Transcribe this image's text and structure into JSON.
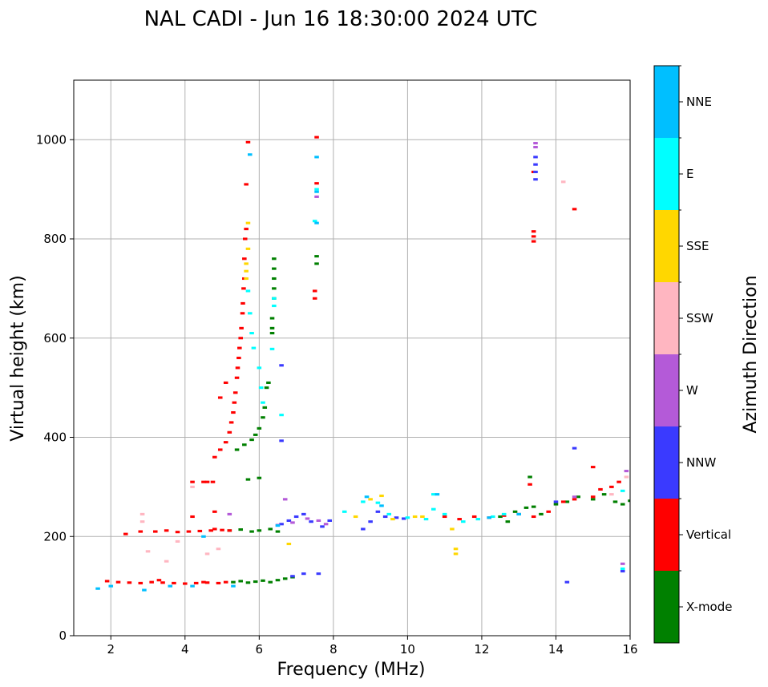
{
  "chart_data": {
    "type": "scatter",
    "title": "NAL CADI - Jun 16 18:30:00 2024 UTC",
    "xlabel": "Frequency (MHz)",
    "ylabel": "Virtual height (km)",
    "xlim": [
      1,
      16
    ],
    "ylim": [
      0,
      1120
    ],
    "xticks": [
      2,
      4,
      6,
      8,
      10,
      12,
      14,
      16
    ],
    "yticks": [
      0,
      200,
      400,
      600,
      800,
      1000
    ],
    "grid": true,
    "colorbar": {
      "label": "Azimuth Direction",
      "categories": [
        {
          "name": "X-mode",
          "color": "#008000"
        },
        {
          "name": "Vertical",
          "color": "#ff0000"
        },
        {
          "name": "NNW",
          "color": "#3a3aff"
        },
        {
          "name": "W",
          "color": "#b45ad8"
        },
        {
          "name": "SSW",
          "color": "#ffb6c1"
        },
        {
          "name": "SSE",
          "color": "#ffd700"
        },
        {
          "name": "E",
          "color": "#00ffff"
        },
        {
          "name": "NNE",
          "color": "#00bfff"
        }
      ]
    },
    "series": [
      {
        "name": "X-mode",
        "points": [
          [
            5.3,
            108
          ],
          [
            5.5,
            110
          ],
          [
            5.7,
            107
          ],
          [
            5.9,
            109
          ],
          [
            6.1,
            111
          ],
          [
            6.3,
            108
          ],
          [
            6.5,
            112
          ],
          [
            6.7,
            115
          ],
          [
            6.9,
            118
          ],
          [
            5.2,
            212
          ],
          [
            5.5,
            214
          ],
          [
            5.8,
            210
          ],
          [
            6.0,
            212
          ],
          [
            6.3,
            215
          ],
          [
            6.5,
            210
          ],
          [
            5.4,
            375
          ],
          [
            5.6,
            385
          ],
          [
            5.8,
            395
          ],
          [
            5.9,
            405
          ],
          [
            6.0,
            418
          ],
          [
            6.1,
            440
          ],
          [
            6.15,
            460
          ],
          [
            6.2,
            500
          ],
          [
            6.25,
            510
          ],
          [
            6.35,
            610
          ],
          [
            6.35,
            620
          ],
          [
            6.35,
            640
          ],
          [
            6.4,
            680
          ],
          [
            6.4,
            700
          ],
          [
            6.4,
            720
          ],
          [
            6.4,
            740
          ],
          [
            6.4,
            760
          ],
          [
            7.55,
            750
          ],
          [
            7.55,
            765
          ],
          [
            5.7,
            315
          ],
          [
            6.0,
            318
          ],
          [
            12.5,
            240
          ],
          [
            12.7,
            230
          ],
          [
            12.9,
            250
          ],
          [
            13.2,
            258
          ],
          [
            13.4,
            260
          ],
          [
            13.6,
            245
          ],
          [
            14.0,
            265
          ],
          [
            14.3,
            270
          ],
          [
            14.6,
            280
          ],
          [
            15.0,
            275
          ],
          [
            15.3,
            285
          ],
          [
            15.6,
            270
          ],
          [
            15.8,
            265
          ],
          [
            16.0,
            272
          ],
          [
            13.3,
            320
          ]
        ]
      },
      {
        "name": "Vertical",
        "points": [
          [
            1.9,
            110
          ],
          [
            2.2,
            108
          ],
          [
            2.5,
            107
          ],
          [
            2.8,
            106
          ],
          [
            3.1,
            108
          ],
          [
            3.4,
            107
          ],
          [
            3.7,
            106
          ],
          [
            4.0,
            105
          ],
          [
            4.3,
            106
          ],
          [
            4.6,
            107
          ],
          [
            4.9,
            106
          ],
          [
            5.1,
            108
          ],
          [
            3.3,
            112
          ],
          [
            4.5,
            108
          ],
          [
            2.4,
            205
          ],
          [
            2.8,
            210
          ],
          [
            3.2,
            210
          ],
          [
            3.5,
            212
          ],
          [
            3.8,
            209
          ],
          [
            4.1,
            210
          ],
          [
            4.4,
            211
          ],
          [
            4.7,
            212
          ],
          [
            5.0,
            213
          ],
          [
            5.2,
            212
          ],
          [
            4.8,
            215
          ],
          [
            4.2,
            310
          ],
          [
            4.5,
            310
          ],
          [
            4.75,
            310
          ],
          [
            4.8,
            360
          ],
          [
            4.95,
            375
          ],
          [
            5.1,
            390
          ],
          [
            5.2,
            410
          ],
          [
            5.25,
            430
          ],
          [
            5.3,
            450
          ],
          [
            5.33,
            470
          ],
          [
            5.36,
            490
          ],
          [
            5.4,
            520
          ],
          [
            5.42,
            540
          ],
          [
            5.45,
            560
          ],
          [
            5.47,
            580
          ],
          [
            5.5,
            600
          ],
          [
            5.52,
            620
          ],
          [
            5.55,
            650
          ],
          [
            5.56,
            670
          ],
          [
            5.58,
            700
          ],
          [
            5.6,
            720
          ],
          [
            5.6,
            760
          ],
          [
            5.62,
            800
          ],
          [
            5.65,
            820
          ],
          [
            5.65,
            910
          ],
          [
            5.7,
            995
          ],
          [
            4.95,
            480
          ],
          [
            5.1,
            510
          ],
          [
            4.2,
            240
          ],
          [
            4.8,
            250
          ],
          [
            4.6,
            310
          ],
          [
            7.5,
            680
          ],
          [
            7.5,
            695
          ],
          [
            7.55,
            1005
          ],
          [
            7.55,
            912
          ],
          [
            11.0,
            240
          ],
          [
            11.4,
            235
          ],
          [
            11.8,
            240
          ],
          [
            12.2,
            238
          ],
          [
            12.6,
            242
          ],
          [
            13.0,
            245
          ],
          [
            13.4,
            240
          ],
          [
            13.8,
            250
          ],
          [
            14.2,
            270
          ],
          [
            14.5,
            275
          ],
          [
            15.0,
            280
          ],
          [
            15.2,
            295
          ],
          [
            15.5,
            300
          ],
          [
            15.7,
            310
          ],
          [
            13.3,
            305
          ],
          [
            15.0,
            340
          ],
          [
            13.4,
            795
          ],
          [
            13.4,
            805
          ],
          [
            13.4,
            815
          ],
          [
            14.5,
            860
          ],
          [
            13.4,
            935
          ]
        ]
      },
      {
        "name": "NNW",
        "points": [
          [
            6.6,
            225
          ],
          [
            6.8,
            232
          ],
          [
            7.0,
            240
          ],
          [
            7.2,
            245
          ],
          [
            7.4,
            230
          ],
          [
            7.7,
            220
          ],
          [
            7.9,
            232
          ],
          [
            8.8,
            215
          ],
          [
            9.0,
            230
          ],
          [
            9.2,
            250
          ],
          [
            9.4,
            240
          ],
          [
            9.7,
            238
          ],
          [
            9.9,
            236
          ],
          [
            6.9,
            120
          ],
          [
            7.2,
            125
          ],
          [
            7.6,
            125
          ],
          [
            6.6,
            545
          ],
          [
            6.6,
            393
          ],
          [
            13.45,
            920
          ],
          [
            13.45,
            935
          ],
          [
            13.45,
            950
          ],
          [
            13.45,
            965
          ],
          [
            14.5,
            378
          ],
          [
            14.3,
            108
          ],
          [
            15.8,
            130
          ],
          [
            14.0,
            270
          ]
        ]
      },
      {
        "name": "W",
        "points": [
          [
            13.45,
            985
          ],
          [
            13.45,
            993
          ],
          [
            6.5,
            223
          ],
          [
            6.9,
            228
          ],
          [
            7.3,
            236
          ],
          [
            7.6,
            232
          ],
          [
            7.8,
            225
          ],
          [
            5.2,
            245
          ],
          [
            6.7,
            275
          ],
          [
            14.5,
            280
          ],
          [
            15.8,
            145
          ],
          [
            15.9,
            332
          ],
          [
            7.55,
            885
          ]
        ]
      },
      {
        "name": "SSW",
        "points": [
          [
            2.85,
            230
          ],
          [
            2.85,
            245
          ],
          [
            3.0,
            170
          ],
          [
            3.5,
            150
          ],
          [
            4.6,
            165
          ],
          [
            4.9,
            175
          ],
          [
            4.2,
            300
          ],
          [
            14.2,
            915
          ],
          [
            15.5,
            285
          ],
          [
            15.9,
            320
          ],
          [
            3.8,
            190
          ]
        ]
      },
      {
        "name": "SSE",
        "points": [
          [
            5.65,
            720
          ],
          [
            5.65,
            735
          ],
          [
            5.65,
            750
          ],
          [
            5.7,
            780
          ],
          [
            5.7,
            832
          ],
          [
            8.6,
            240
          ],
          [
            9.0,
            275
          ],
          [
            9.3,
            282
          ],
          [
            9.6,
            235
          ],
          [
            10.2,
            240
          ],
          [
            10.4,
            240
          ],
          [
            11.2,
            215
          ],
          [
            11.3,
            175
          ],
          [
            11.3,
            165
          ],
          [
            6.8,
            185
          ]
        ]
      },
      {
        "name": "E",
        "points": [
          [
            5.7,
            695
          ],
          [
            5.75,
            650
          ],
          [
            5.8,
            610
          ],
          [
            5.85,
            580
          ],
          [
            6.0,
            540
          ],
          [
            6.05,
            500
          ],
          [
            6.1,
            470
          ],
          [
            6.35,
            578
          ],
          [
            6.4,
            665
          ],
          [
            6.4,
            680
          ],
          [
            6.6,
            445
          ],
          [
            8.3,
            250
          ],
          [
            8.8,
            270
          ],
          [
            9.2,
            268
          ],
          [
            9.5,
            245
          ],
          [
            10.0,
            238
          ],
          [
            10.5,
            235
          ],
          [
            10.7,
            285
          ],
          [
            10.7,
            255
          ],
          [
            11.0,
            245
          ],
          [
            11.5,
            230
          ],
          [
            11.9,
            235
          ],
          [
            12.3,
            240
          ],
          [
            12.6,
            245
          ],
          [
            15.8,
            292
          ],
          [
            15.8,
            135
          ],
          [
            7.5,
            836
          ],
          [
            7.55,
            900
          ]
        ]
      },
      {
        "name": "NNE",
        "points": [
          [
            1.65,
            95
          ],
          [
            2.0,
            100
          ],
          [
            2.9,
            92
          ],
          [
            3.6,
            100
          ],
          [
            4.2,
            100
          ],
          [
            5.3,
            100
          ],
          [
            5.75,
            970
          ],
          [
            7.55,
            965
          ],
          [
            7.55,
            895
          ],
          [
            7.55,
            832
          ],
          [
            8.9,
            280
          ],
          [
            9.3,
            262
          ],
          [
            10.8,
            285
          ],
          [
            13.0,
            245
          ],
          [
            6.5,
            222
          ],
          [
            12.2,
            238
          ],
          [
            4.5,
            200
          ]
        ]
      }
    ]
  }
}
